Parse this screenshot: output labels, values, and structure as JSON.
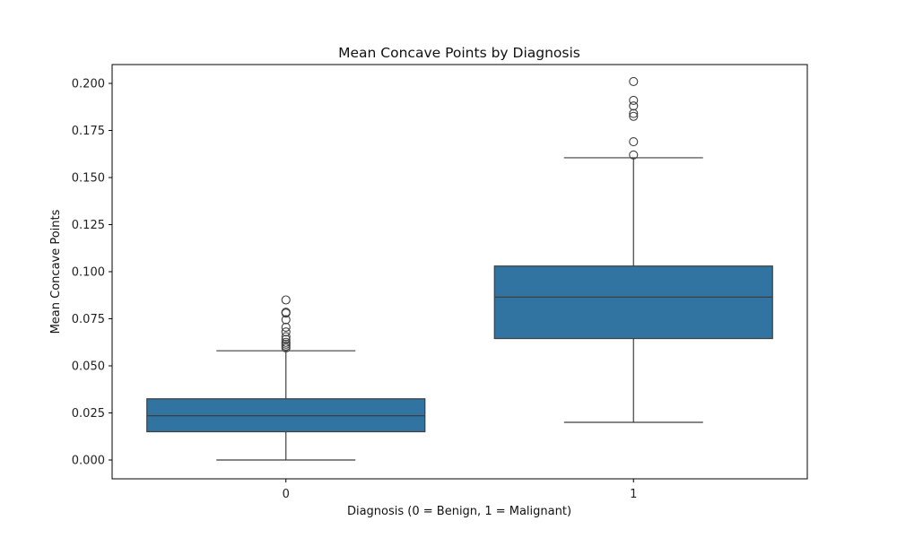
{
  "chart_data": {
    "type": "box",
    "title": "Mean Concave Points by Diagnosis",
    "xlabel": "Diagnosis (0 = Benign, 1 = Malignant)",
    "ylabel": "Mean Concave Points",
    "ylim": [
      -0.01,
      0.21
    ],
    "yticks": [
      "0.000",
      "0.025",
      "0.050",
      "0.075",
      "0.100",
      "0.125",
      "0.150",
      "0.175",
      "0.200"
    ],
    "categories": [
      "0",
      "1"
    ],
    "box_color": "#3274a1",
    "grid": false,
    "series": [
      {
        "category": "0",
        "whisker_low": 0.0,
        "q1": 0.015,
        "median": 0.0235,
        "q3": 0.0325,
        "whisker_high": 0.058,
        "outliers": [
          0.0595,
          0.0605,
          0.0615,
          0.0625,
          0.064,
          0.0655,
          0.068,
          0.0705,
          0.0745,
          0.078,
          0.0785,
          0.085
        ]
      },
      {
        "category": "1",
        "whisker_low": 0.02,
        "q1": 0.0645,
        "median": 0.0865,
        "q3": 0.103,
        "whisker_high": 0.1605,
        "outliers": [
          0.162,
          0.169,
          0.1825,
          0.184,
          0.188,
          0.191,
          0.201
        ]
      }
    ]
  }
}
